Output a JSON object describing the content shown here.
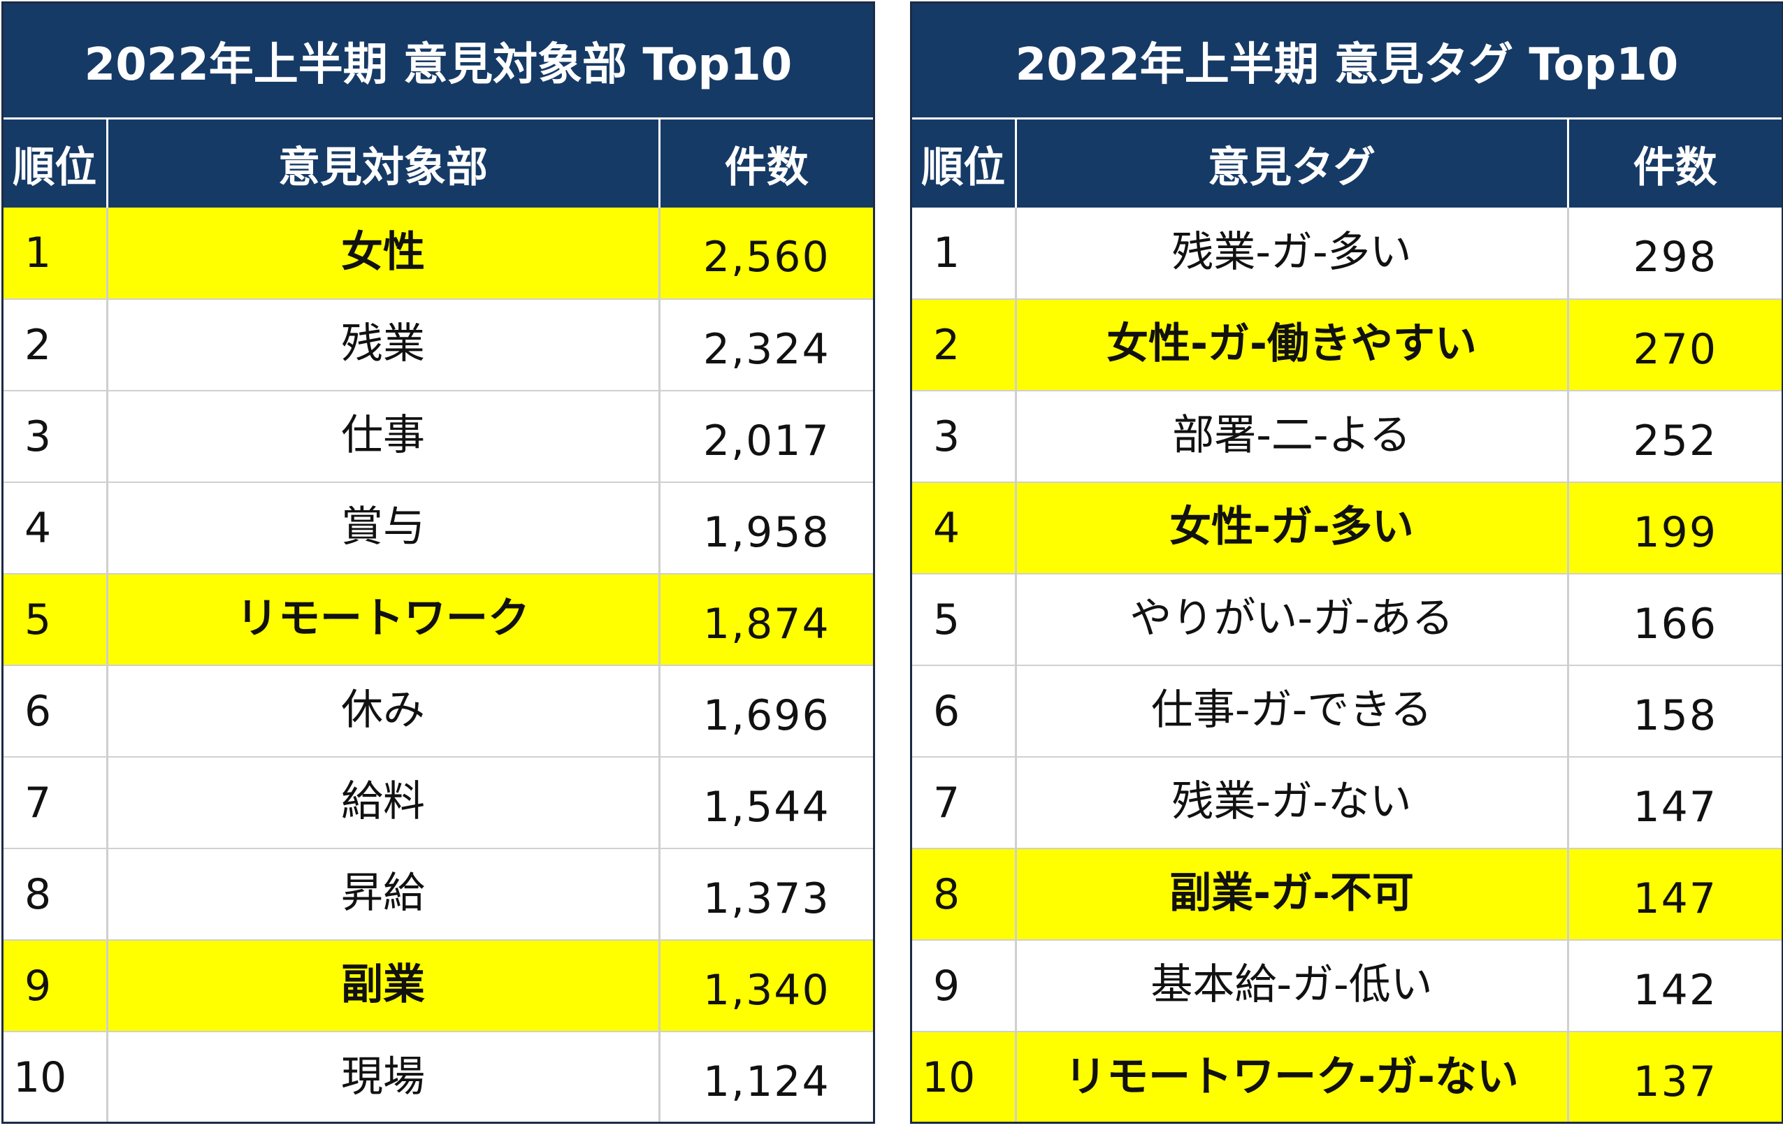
{
  "colors": {
    "header_bg": "#163a66",
    "highlight": "#ffff00"
  },
  "left_table": {
    "title": "2022年上半期 意見対象部 Top10",
    "headers": {
      "rank": "順位",
      "name": "意見対象部",
      "count": "件数"
    },
    "rows": [
      {
        "rank": "1",
        "name": "女性",
        "count": "2,560",
        "highlight": true
      },
      {
        "rank": "2",
        "name": "残業",
        "count": "2,324",
        "highlight": false
      },
      {
        "rank": "3",
        "name": "仕事",
        "count": "2,017",
        "highlight": false
      },
      {
        "rank": "4",
        "name": "賞与",
        "count": "1,958",
        "highlight": false
      },
      {
        "rank": "5",
        "name": "リモートワーク",
        "count": "1,874",
        "highlight": true
      },
      {
        "rank": "6",
        "name": "休み",
        "count": "1,696",
        "highlight": false
      },
      {
        "rank": "7",
        "name": "給料",
        "count": "1,544",
        "highlight": false
      },
      {
        "rank": "8",
        "name": "昇給",
        "count": "1,373",
        "highlight": false
      },
      {
        "rank": "9",
        "name": "副業",
        "count": "1,340",
        "highlight": true
      },
      {
        "rank": "10",
        "name": "現場",
        "count": "1,124",
        "highlight": false
      }
    ]
  },
  "right_table": {
    "title": "2022年上半期 意見タグ Top10",
    "headers": {
      "rank": "順位",
      "name": "意見タグ",
      "count": "件数"
    },
    "rows": [
      {
        "rank": "1",
        "name": "残業-ガ-多い",
        "count": "298",
        "highlight": false
      },
      {
        "rank": "2",
        "name": "女性-ガ-働きやすい",
        "count": "270",
        "highlight": true
      },
      {
        "rank": "3",
        "name": "部署-二-よる",
        "count": "252",
        "highlight": false
      },
      {
        "rank": "4",
        "name": "女性-ガ-多い",
        "count": "199",
        "highlight": true
      },
      {
        "rank": "5",
        "name": "やりがい-ガ-ある",
        "count": "166",
        "highlight": false
      },
      {
        "rank": "6",
        "name": "仕事-ガ-できる",
        "count": "158",
        "highlight": false
      },
      {
        "rank": "7",
        "name": "残業-ガ-ない",
        "count": "147",
        "highlight": false
      },
      {
        "rank": "8",
        "name": "副業-ガ-不可",
        "count": "147",
        "highlight": true
      },
      {
        "rank": "9",
        "name": "基本給-ガ-低い",
        "count": "142",
        "highlight": false
      },
      {
        "rank": "10",
        "name": "リモートワーク-ガ-ない",
        "count": "137",
        "highlight": true
      }
    ]
  }
}
